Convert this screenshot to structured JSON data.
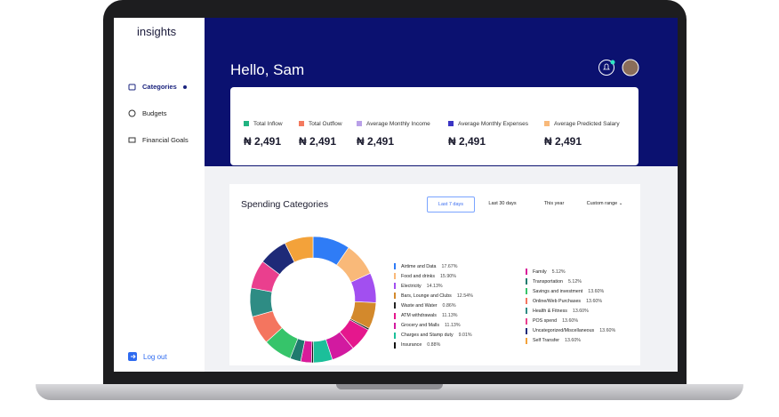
{
  "sidebar": {
    "logo": "insights",
    "nav": [
      "Categories",
      "Budgets",
      "Financial Goals"
    ],
    "logout": "Log out"
  },
  "header": {
    "greeting": "Hello, Sam"
  },
  "summary": [
    {
      "label": "Total Inflow",
      "value": "₦ 2,491",
      "color": "#21b381"
    },
    {
      "label": "Total Outflow",
      "value": "₦ 2,491",
      "color": "#f47a5f"
    },
    {
      "label": "Average Monthly Income",
      "value": "₦ 2,491",
      "color": "#b9a0e8"
    },
    {
      "label": "Average Monthly Expenses",
      "value": "₦ 2,491",
      "color": "#3b35c4"
    },
    {
      "label": "Average Predicted Salary",
      "value": "₦ 2,491",
      "color": "#f8b97a"
    }
  ],
  "ranges": [
    "Last 7 days",
    "Last 30 days",
    "This year",
    "Custom range"
  ],
  "chart_data": {
    "type": "donut",
    "title": "Spending Categories",
    "categories": [
      "Airtime and Data",
      "Food and drinks",
      "Electricity",
      "Bars, Lounge and Clubs",
      "Waste and Water",
      "ATM withdrawals",
      "Grocery and Malls",
      "Charges and Stamp duty",
      "Insurance",
      "Family",
      "Transportation",
      "Savings and investment",
      "Online/Web Purchases",
      "Health & Fitness",
      "POS spend",
      "Uncategorized/Miscellaneous",
      "Self Transfer"
    ],
    "values": [
      17.67,
      15.9,
      14.13,
      12.54,
      0.86,
      11.13,
      11.13,
      9.01,
      0.88,
      5.12,
      5.12,
      13.6,
      13.6,
      13.6,
      13.6,
      13.6,
      13.6
    ],
    "value_labels": [
      "17.67%",
      "15.90%",
      "14.13%",
      "12.54%",
      "0.86%",
      "11.13%",
      "11.13%",
      "9.01%",
      "0.88%",
      "5.12%",
      "5.12%",
      "13.60%",
      "13.60%",
      "13.60%",
      "13.60%",
      "13.60%",
      "13.60%"
    ],
    "colors": [
      "#2f7cf6",
      "#f9b979",
      "#a24ff0",
      "#d3892c",
      "#222222",
      "#e5178d",
      "#d21aa0",
      "#1cbf9a",
      "#111111",
      "#d81b9a",
      "#1f7a6e",
      "#36c46a",
      "#f4755f",
      "#2e8c84",
      "#ea3f8e",
      "#1e2a78",
      "#f3a23a"
    ]
  }
}
